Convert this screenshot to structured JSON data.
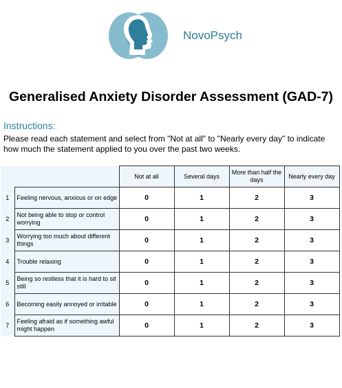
{
  "brand": {
    "name": "NovoPsych"
  },
  "colors": {
    "brand_teal": "#2d7d9a",
    "logo_teal": "#5fa5be",
    "table_tint": "#eef6fc"
  },
  "title": "Generalised Anxiety Disorder Assessment (GAD-7)",
  "instructions": {
    "heading": "Instructions:",
    "text": "Please read each statement and select from \"Not at all\" to \"Nearly every day\" to indicate how much the statement applied to you over the past two weeks."
  },
  "table": {
    "options": [
      "Not at all",
      "Several days",
      "More than half the days",
      "Nearly every day"
    ],
    "items": [
      {
        "num": "1",
        "text": "Feeling nervous, anxious or on edge",
        "scores": [
          "0",
          "1",
          "2",
          "3"
        ]
      },
      {
        "num": "2",
        "text": "Not being able to stop or control worrying",
        "scores": [
          "0",
          "1",
          "2",
          "3"
        ]
      },
      {
        "num": "3",
        "text": "Worrying too much about different things",
        "scores": [
          "0",
          "1",
          "2",
          "3"
        ]
      },
      {
        "num": "4",
        "text": "Trouble relaxing",
        "scores": [
          "0",
          "1",
          "2",
          "3"
        ]
      },
      {
        "num": "5",
        "text": "Being so restless that it is hard to sit still",
        "scores": [
          "0",
          "1",
          "2",
          "3"
        ]
      },
      {
        "num": "6",
        "text": "Becoming easily annoyed or irritable",
        "scores": [
          "0",
          "1",
          "2",
          "3"
        ]
      },
      {
        "num": "7",
        "text": "Feeling afraid as if something awful might happen",
        "scores": [
          "0",
          "1",
          "2",
          "3"
        ]
      }
    ]
  }
}
